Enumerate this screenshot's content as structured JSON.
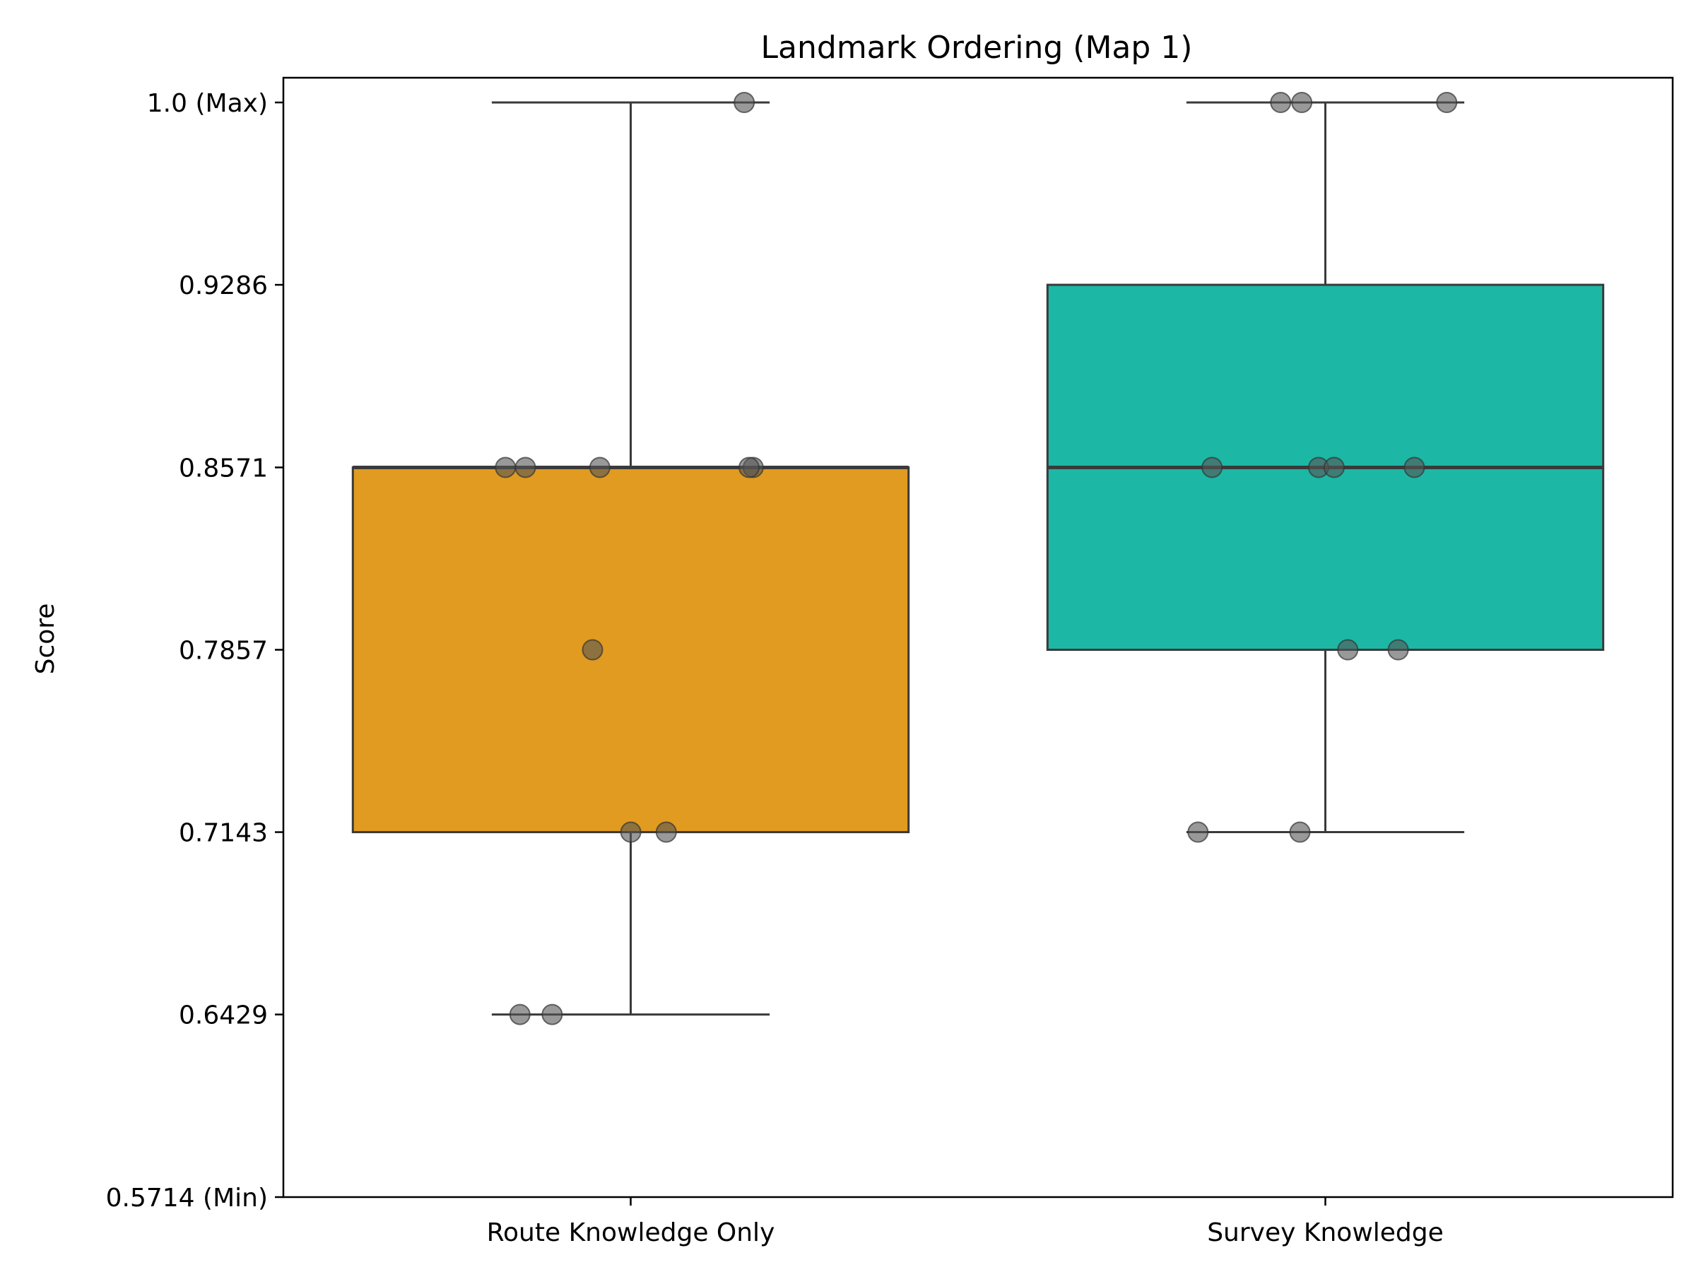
{
  "chart_data": {
    "type": "box",
    "title": "Landmark Ordering (Map 1)",
    "xlabel": "",
    "ylabel": "Score",
    "ylim": [
      0.5714,
      1.0
    ],
    "yticks": [
      {
        "value": 1.0,
        "label": "1.0 (Max)"
      },
      {
        "value": 0.9286,
        "label": "0.9286"
      },
      {
        "value": 0.8571,
        "label": "0.8571"
      },
      {
        "value": 0.7857,
        "label": "0.7857"
      },
      {
        "value": 0.7143,
        "label": "0.7143"
      },
      {
        "value": 0.6429,
        "label": "0.6429"
      },
      {
        "value": 0.5714,
        "label": "0.5714 (Min)"
      }
    ],
    "categories": [
      "Route Knowledge Only",
      "Survey Knowledge"
    ],
    "boxes": [
      {
        "name": "Route Knowledge Only",
        "color": "#e09b20",
        "q1": 0.7143,
        "median": 0.8571,
        "q3": 0.8571,
        "whisker_low": 0.6429,
        "whisker_high": 1.0,
        "points": [
          1.0,
          0.8571,
          0.8571,
          0.8571,
          0.8571,
          0.8571,
          0.7857,
          0.7143,
          0.7143,
          0.6429,
          0.6429
        ]
      },
      {
        "name": "Survey Knowledge",
        "color": "#1cb7a5",
        "q1": 0.7857,
        "median": 0.8571,
        "q3": 0.9286,
        "whisker_low": 0.7143,
        "whisker_high": 1.0,
        "points": [
          1.0,
          1.0,
          1.0,
          0.8571,
          0.8571,
          0.8571,
          0.8571,
          0.7857,
          0.7857,
          0.7143,
          0.7143
        ]
      }
    ],
    "grid": false,
    "legend": "none",
    "point_color": "#555555"
  }
}
